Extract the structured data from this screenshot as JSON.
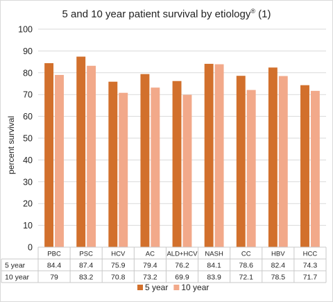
{
  "chart_data": {
    "type": "bar",
    "title": "5 and 10 year patient survival by etiology",
    "title_superscript": "®",
    "title_suffix": " (1)",
    "ylabel": "percent survival",
    "xlabel": "",
    "ylim": [
      0,
      100
    ],
    "yticks": [
      0,
      10,
      20,
      30,
      40,
      50,
      60,
      70,
      80,
      90,
      100
    ],
    "grid": true,
    "legend_position": "bottom-right",
    "categories": [
      "PBC",
      "PSC",
      "HCV",
      "AC",
      "ALD+HCV",
      "NASH",
      "CC",
      "HBV",
      "HCC"
    ],
    "series": [
      {
        "name": "5 year",
        "color": "#d2702c",
        "values": [
          84.4,
          87.4,
          75.9,
          79.4,
          76.2,
          84.1,
          78.6,
          82.4,
          74.3
        ]
      },
      {
        "name": "10 year",
        "color": "#f2a98a",
        "values": [
          79,
          83.2,
          70.8,
          73.2,
          69.9,
          83.9,
          72.1,
          78.5,
          71.7
        ]
      }
    ],
    "table": {
      "rows": [
        {
          "label": "5 year",
          "values": [
            "84.4",
            "87.4",
            "75.9",
            "79.4",
            "76.2",
            "84.1",
            "78.6",
            "82.4",
            "74.3"
          ]
        },
        {
          "label": "10 year",
          "values": [
            "79",
            "83.2",
            "70.8",
            "73.2",
            "69.9",
            "83.9",
            "72.1",
            "78.5",
            "71.7"
          ]
        }
      ]
    }
  }
}
